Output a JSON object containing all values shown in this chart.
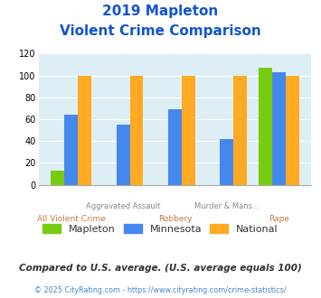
{
  "title_line1": "2019 Mapleton",
  "title_line2": "Violent Crime Comparison",
  "categories": [
    "All Violent Crime",
    "Aggravated Assault",
    "Robbery",
    "Murder & Mans...",
    "Rape"
  ],
  "mapleton": [
    13,
    0,
    0,
    0,
    107
  ],
  "minnesota": [
    64,
    55,
    69,
    42,
    103
  ],
  "national": [
    100,
    100,
    100,
    100,
    100
  ],
  "colors": {
    "mapleton": "#77cc11",
    "minnesota": "#4488ee",
    "national": "#ffaa22"
  },
  "ylim": [
    0,
    120
  ],
  "yticks": [
    0,
    20,
    40,
    60,
    80,
    100,
    120
  ],
  "bg_color": "#ddeef5",
  "title_color": "#1155cc",
  "xlabel_top_color": "#888888",
  "xlabel_bot_color": "#cc7744",
  "footer_text": "Compared to U.S. average. (U.S. average equals 100)",
  "footer2_text": "© 2025 CityRating.com - https://www.cityrating.com/crime-statistics/",
  "footer_color": "#333333",
  "footer2_color": "#4488cc",
  "legend_text_color": "#333333"
}
